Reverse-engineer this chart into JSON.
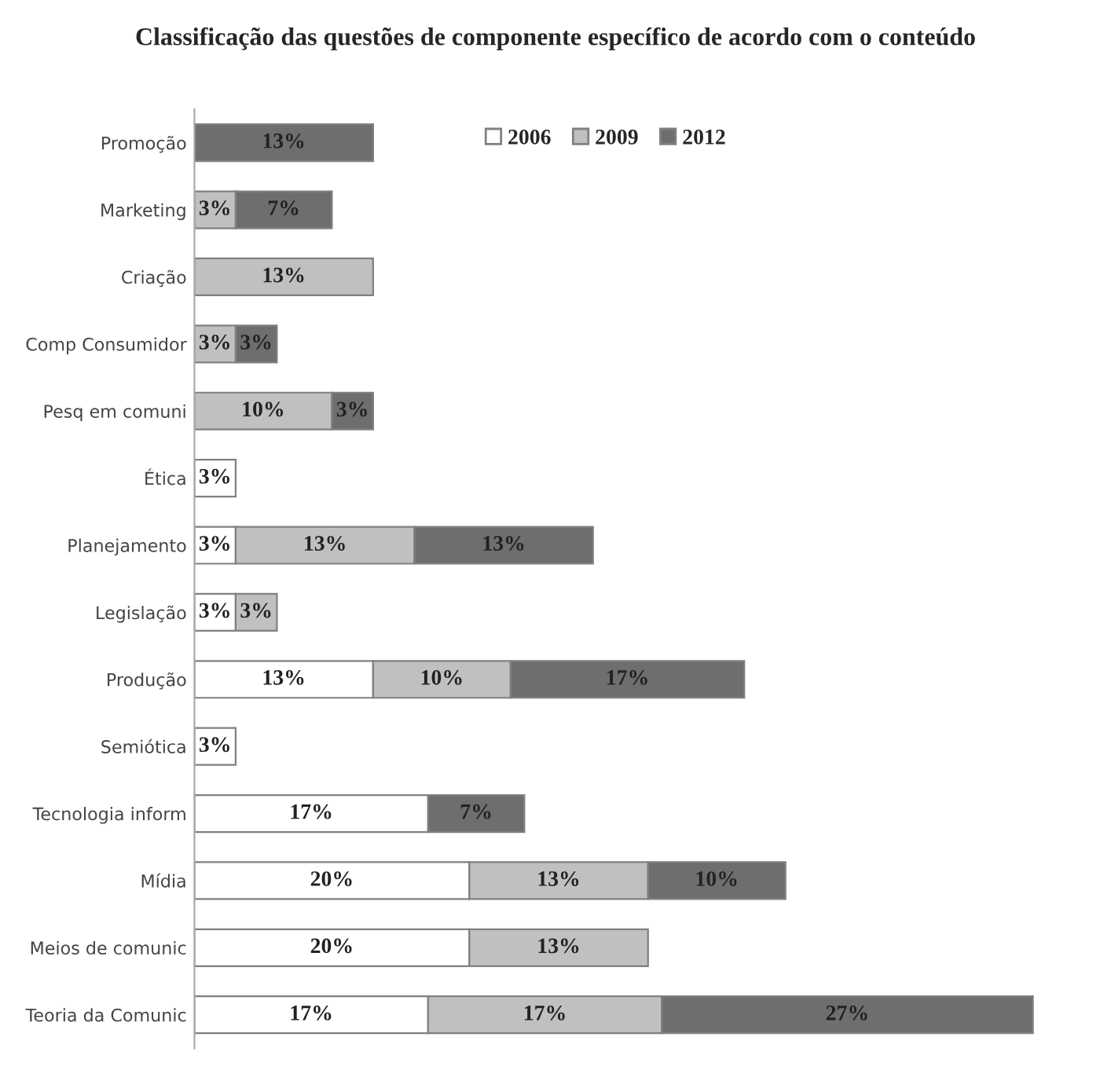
{
  "chart_data": {
    "type": "bar",
    "orientation": "horizontal",
    "stacked": true,
    "title": "Classificação das questões de componente específico de acordo com o conteúdo",
    "categories": [
      "Promoção",
      "Marketing",
      "Criação",
      "Comp Consumidor",
      "Pesq em comuni",
      "Ética",
      "Planejamento",
      "Legislação",
      "Produção",
      "Semiótica",
      "Tecnologia inform",
      "Mídia",
      "Meios de comunic",
      "Teoria da Comunic"
    ],
    "series": [
      {
        "name": "2006",
        "color": "#ffffff",
        "values": [
          null,
          null,
          null,
          null,
          null,
          3,
          3,
          3,
          13,
          3,
          17,
          20,
          20,
          17
        ],
        "value_labels": [
          null,
          null,
          null,
          null,
          null,
          "3%",
          "3%",
          "3%",
          "13%",
          "3%",
          "17%",
          "20%",
          "20%",
          "17%"
        ]
      },
      {
        "name": "2009",
        "color": "#c0c0c0",
        "values": [
          null,
          3,
          13,
          3,
          10,
          null,
          13,
          3,
          10,
          null,
          null,
          13,
          13,
          17
        ],
        "value_labels": [
          null,
          "3%",
          "13%",
          "3%",
          "10%",
          null,
          "13%",
          "3%",
          "10%",
          null,
          null,
          "13%",
          "13%",
          "17%"
        ]
      },
      {
        "name": "2012",
        "color": "#6e6e6e",
        "values": [
          13,
          7,
          null,
          3,
          3,
          null,
          13,
          null,
          17,
          null,
          7,
          10,
          null,
          27
        ],
        "value_labels": [
          "13%",
          "7%",
          null,
          "3%",
          "3%",
          null,
          "13%",
          null,
          "17%",
          null,
          "7%",
          "10%",
          null,
          "27%"
        ]
      }
    ],
    "legend": "top right",
    "grid": false
  }
}
